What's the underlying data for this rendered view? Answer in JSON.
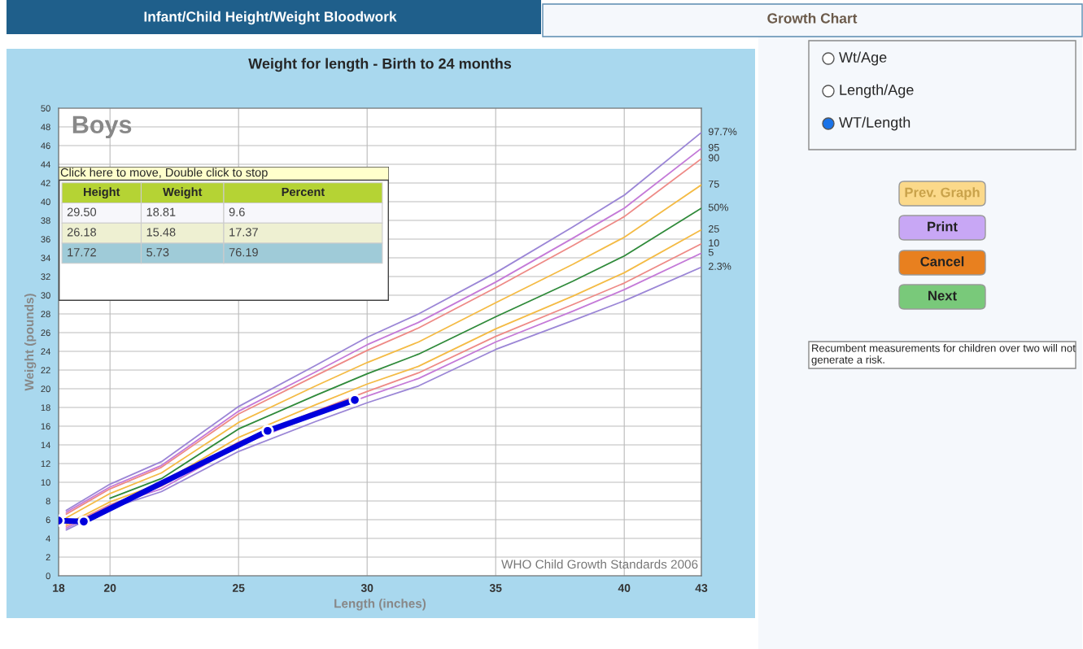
{
  "chart_data": [
    {
      "type": "line",
      "title": "Weight for length - Birth to 24 months",
      "xlabel": "Length (inches)",
      "ylabel": "Weight (pounds)",
      "xlim": [
        18,
        43
      ],
      "xticks": [
        18,
        20,
        25,
        30,
        35,
        40,
        43
      ],
      "ylim": [
        0,
        50
      ],
      "yticks": [
        0,
        2,
        4,
        6,
        8,
        10,
        12,
        14,
        16,
        18,
        20,
        22,
        24,
        26,
        28,
        30,
        32,
        34,
        36,
        38,
        40,
        42,
        44,
        46,
        48,
        50
      ],
      "grid": true,
      "marker": "none",
      "annotations": [
        "Boys",
        "WHO Child Growth Standards 2006"
      ],
      "x": [
        18.3,
        20,
        22,
        25,
        28,
        30,
        32,
        35,
        38,
        40,
        43
      ],
      "series": [
        {
          "name": "97.7%",
          "color": "#9b86d6",
          "values": [
            7.0,
            9.8,
            12.2,
            18.1,
            22.5,
            25.5,
            28.0,
            32.4,
            37.3,
            40.7,
            47.4
          ]
        },
        {
          "name": "95",
          "color": "#c47ad8",
          "values": [
            6.8,
            9.5,
            11.8,
            17.6,
            21.8,
            24.7,
            27.1,
            31.4,
            36.1,
            39.3,
            45.7
          ]
        },
        {
          "name": "90",
          "color": "#ee8a86",
          "values": [
            6.6,
            9.3,
            11.6,
            17.3,
            21.4,
            24.1,
            26.5,
            30.8,
            35.3,
            38.4,
            44.6
          ]
        },
        {
          "name": "75",
          "color": "#f4bb45",
          "values": [
            6.2,
            8.8,
            11.0,
            16.4,
            20.3,
            22.8,
            25.0,
            29.2,
            33.3,
            36.2,
            41.8
          ]
        },
        {
          "name": "50%",
          "color": "#2f8a3a",
          "values": [
            null,
            8.3,
            10.4,
            15.7,
            19.3,
            21.6,
            23.7,
            27.7,
            31.5,
            34.2,
            39.3
          ]
        },
        {
          "name": "25",
          "color": "#f4bb45",
          "values": [
            5.5,
            7.9,
            9.9,
            14.8,
            18.3,
            20.5,
            22.4,
            26.4,
            29.9,
            32.4,
            37.0
          ]
        },
        {
          "name": "10",
          "color": "#ee8a86",
          "values": [
            5.3,
            7.6,
            9.6,
            14.3,
            17.6,
            19.7,
            21.7,
            25.6,
            29.0,
            31.3,
            35.5
          ]
        },
        {
          "name": "5",
          "color": "#c47ad8",
          "values": [
            5.1,
            7.5,
            9.3,
            13.9,
            17.2,
            19.2,
            21.1,
            25.0,
            28.3,
            30.6,
            34.5
          ]
        },
        {
          "name": "2.3%",
          "color": "#9b86d6",
          "values": [
            4.9,
            7.2,
            9.0,
            13.3,
            16.5,
            18.5,
            20.3,
            24.2,
            27.3,
            29.4,
            33.0
          ]
        },
        {
          "color": "#0000dd",
          "marker": "circle",
          "x": [
            18,
            18.98,
            26.13,
            29.52
          ],
          "values": [
            5.9,
            5.8,
            15.5,
            18.8
          ]
        }
      ]
    },
    {
      "type": "other",
      "annotations": [
        "Click here to move, Double click to stop",
        "Height",
        "Weight",
        "Percent",
        "29.50",
        "18.81",
        "9.6",
        "26.18",
        "15.48",
        "17.37",
        "17.72",
        "5.73",
        "76.19"
      ]
    },
    {
      "type": "other",
      "annotations": [
        "Infant/Child Height/Weight Bloodwork",
        "Growth Chart",
        "Wt/Age",
        "Length/Age",
        "WT/Length",
        "Prev. Graph",
        "Print",
        "Cancel",
        "Next",
        "Recumbent measurements for children over two will not generate a risk."
      ]
    }
  ]
}
